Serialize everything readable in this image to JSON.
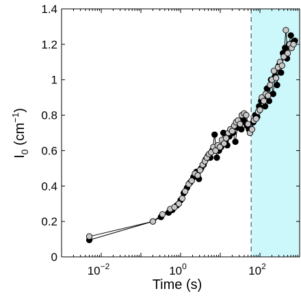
{
  "chart_data": {
    "type": "line",
    "title": "",
    "xlabel": "Time (s)",
    "ylabel": "I",
    "ylabel_sub": "0",
    "ylabel_unit_open": " (cm",
    "ylabel_unit_sup": "−1",
    "ylabel_unit_close": ")",
    "xscale": "log",
    "xlim": [
      0.001,
      1000
    ],
    "ylim": [
      0,
      1.4
    ],
    "grid": false,
    "legend": "none",
    "x_ticks": [
      {
        "value": 0.01,
        "base": "10",
        "exp": "−2"
      },
      {
        "value": 1,
        "base": "10",
        "exp": "0"
      },
      {
        "value": 100,
        "base": "10",
        "exp": "2"
      }
    ],
    "y_ticks": [
      {
        "value": 0,
        "label": "0"
      },
      {
        "value": 0.2,
        "label": "0.2"
      },
      {
        "value": 0.4,
        "label": "0.4"
      },
      {
        "value": 0.6,
        "label": "0.6"
      },
      {
        "value": 0.8,
        "label": "0.8"
      },
      {
        "value": 1.0,
        "label": "1"
      },
      {
        "value": 1.2,
        "label": "1.2"
      },
      {
        "value": 1.4,
        "label": "1.4"
      }
    ],
    "highlight_region": {
      "x_start": 60,
      "x_end": 1000,
      "color": "#ccf8fb",
      "boundary_color": "#555555"
    },
    "series": [
      {
        "marker_color": "#000000",
        "x": [
          0.005,
          0.2,
          0.32,
          0.5,
          0.62,
          0.8,
          1.0,
          1.2,
          1.45,
          1.75,
          2.1,
          2.5,
          2.9,
          3.3,
          3.8,
          4.3,
          4.9,
          5.6,
          6.3,
          7.2,
          8.2,
          9.3,
          10.5,
          12,
          13.5,
          15,
          17,
          19,
          21,
          24,
          27,
          30,
          34,
          38,
          42,
          47,
          53,
          60,
          68,
          76,
          85,
          95,
          107,
          120,
          135,
          150,
          170,
          190,
          215,
          240,
          270,
          300,
          340,
          380,
          430,
          480,
          540,
          600,
          680,
          760
        ],
        "y": [
          0.095,
          0.2,
          0.225,
          0.25,
          0.265,
          0.29,
          0.32,
          0.36,
          0.39,
          0.42,
          0.45,
          0.48,
          0.44,
          0.5,
          0.52,
          0.55,
          0.57,
          0.56,
          0.6,
          0.69,
          0.56,
          0.6,
          0.62,
          0.7,
          0.65,
          0.63,
          0.68,
          0.72,
          0.7,
          0.65,
          0.73,
          0.75,
          0.72,
          0.78,
          0.76,
          0.74,
          0.72,
          0.72,
          0.76,
          0.8,
          0.79,
          0.85,
          0.88,
          0.9,
          0.85,
          0.95,
          0.88,
          1.0,
          0.92,
          1.02,
          0.97,
          1.08,
          1.04,
          1.15,
          1.18,
          1.12,
          1.2,
          1.25,
          1.21,
          1.22
        ]
      },
      {
        "marker_color": "#c8c8c8",
        "x": [
          0.005,
          0.2,
          0.35,
          0.55,
          0.7,
          0.9,
          1.1,
          1.3,
          1.6,
          1.9,
          2.3,
          2.7,
          3.1,
          3.6,
          4.1,
          4.6,
          5.2,
          5.9,
          6.7,
          7.6,
          8.6,
          9.8,
          11,
          12.5,
          14,
          16,
          18,
          20,
          22.5,
          25,
          28,
          31.5,
          35,
          40,
          45,
          50,
          56,
          63,
          71,
          80,
          90,
          100,
          112,
          125,
          140,
          160,
          180,
          200,
          225,
          255,
          285,
          320,
          360,
          400,
          450,
          500,
          560,
          630,
          700
        ],
        "y": [
          0.115,
          0.2,
          0.24,
          0.27,
          0.28,
          0.3,
          0.33,
          0.37,
          0.41,
          0.43,
          0.47,
          0.46,
          0.49,
          0.52,
          0.54,
          0.56,
          0.58,
          0.59,
          0.62,
          0.6,
          0.63,
          0.62,
          0.66,
          0.64,
          0.67,
          0.7,
          0.72,
          0.71,
          0.74,
          0.76,
          0.77,
          0.75,
          0.8,
          0.81,
          0.8,
          0.75,
          0.7,
          0.72,
          0.77,
          0.78,
          0.82,
          0.83,
          0.9,
          0.88,
          0.92,
          0.91,
          0.97,
          1.0,
          1.05,
          1.01,
          1.07,
          1.1,
          1.08,
          1.13,
          1.28,
          1.15,
          1.2,
          1.18,
          1.2
        ]
      }
    ]
  }
}
